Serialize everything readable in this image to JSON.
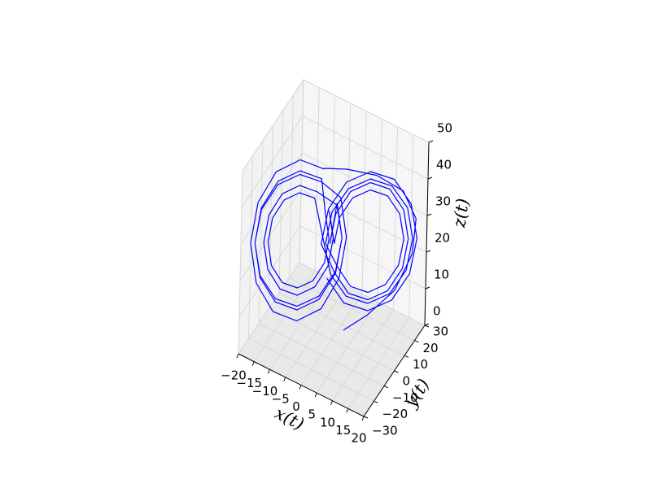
{
  "chart_data": {
    "type": "line3d",
    "xlabel": "x(t)",
    "ylabel": "y(t)",
    "zlabel": "z(t)",
    "xlim": [
      -20,
      20
    ],
    "ylim": [
      -30,
      30
    ],
    "zlim": [
      0,
      50
    ],
    "xticks": [
      {
        "value": -20,
        "label": "−20"
      },
      {
        "value": -15,
        "label": "−15"
      },
      {
        "value": -10,
        "label": "−10"
      },
      {
        "value": -5,
        "label": "−5"
      },
      0,
      5,
      10,
      15,
      20
    ],
    "yticks": [
      {
        "value": -30,
        "label": "−30"
      },
      {
        "value": -20,
        "label": "−20"
      },
      {
        "value": -10,
        "label": "−10"
      },
      0,
      10,
      20,
      30
    ],
    "zticks": [
      0,
      10,
      20,
      30,
      40,
      50
    ],
    "grid": true,
    "series": [
      {
        "color": "#0000ff",
        "x": [
          3,
          8,
          14,
          18,
          19,
          16,
          10,
          3,
          -2,
          -3,
          -8.5,
          -14,
          -18,
          -19.5,
          -18,
          -14,
          -8.5,
          -3,
          1,
          2.5,
          1,
          -3.5,
          -8.5,
          -13.5,
          -17.2,
          -18.5,
          -17.2,
          -13.5,
          -8.5,
          -3.5,
          0.2,
          1.5,
          0.2,
          -4.5,
          -8.5,
          -12.5,
          -15.4,
          -16.5,
          -15.4,
          -12.5,
          -8.5,
          -4.5,
          -1.6,
          -0.5,
          -1.6,
          0.5,
          1.6,
          4.5,
          8.5,
          12.5,
          15.4,
          16.5,
          15.4,
          12.5,
          8.5,
          4.5,
          1.6,
          -1.5,
          -0.2,
          3.5,
          8.5,
          13.5,
          17.2,
          18.5,
          17.2,
          13.5,
          8.5,
          3.5,
          -0.2,
          -5,
          -8.5,
          -12,
          -14.6,
          -15.5,
          -14.6,
          -12,
          -8.5,
          -5,
          -2.4,
          -1.5,
          -2.4,
          -3.5,
          -8.5,
          -13.5,
          -17.2,
          -18.5,
          -17.2,
          -13.5,
          -8.5,
          -3.5,
          0.2,
          1.5,
          0.2,
          -0.5,
          0.7,
          4,
          8.5,
          13,
          16.3,
          17.5,
          16.3,
          13,
          8.5,
          4,
          0.7,
          -2.5,
          -1,
          3,
          8.5,
          14,
          18,
          19.5,
          18,
          14,
          8.5,
          3,
          -1
        ],
        "y": [
          2,
          10,
          18,
          22,
          22,
          18,
          10,
          2,
          -5,
          -1.9,
          -8.5,
          -15.1,
          -19.9,
          -21.7,
          -19.9,
          -15.1,
          -8.5,
          -1.9,
          2.9,
          4.7,
          2.9,
          -2.5,
          -8.5,
          -14.5,
          -18.9,
          -20.5,
          -18.9,
          -14.5,
          -8.5,
          -2.5,
          1.9,
          3.5,
          1.9,
          -3.7,
          -8.5,
          -13.3,
          -16.8,
          -18.1,
          -16.8,
          -13.3,
          -8.5,
          -3.7,
          -0.2,
          1.1,
          -0.2,
          -1.1,
          0.2,
          3.7,
          8.5,
          13.3,
          16.8,
          18.1,
          16.8,
          13.3,
          8.5,
          3.7,
          0.2,
          -3.5,
          -1.9,
          2.5,
          8.5,
          14.5,
          18.9,
          20.5,
          18.9,
          14.5,
          8.5,
          2.5,
          -1.9,
          -4.3,
          -8.5,
          -12.7,
          -15.8,
          -16.9,
          -15.8,
          -12.7,
          -8.5,
          -4.3,
          -1.2,
          -0.1,
          -1.2,
          -2.5,
          -8.5,
          -14.5,
          -18.9,
          -20.5,
          -18.9,
          -14.5,
          -8.5,
          -2.5,
          1.9,
          3.5,
          1.9,
          -2.3,
          -0.9,
          3.1,
          8.5,
          13.9,
          17.9,
          19.3,
          17.9,
          13.9,
          8.5,
          3.1,
          -0.9,
          -4.7,
          -2.9,
          1.9,
          8.5,
          15.1,
          19.9,
          21.7,
          19.9,
          15.1,
          8.5,
          1.9,
          -2.9
        ],
        "z": [
          3,
          6,
          12,
          22,
          32,
          40,
          45,
          47,
          48,
          46.1,
          49,
          46.1,
          38,
          27,
          16,
          7.9,
          5,
          7.9,
          16,
          27,
          38,
          42.6,
          45,
          42.6,
          36,
          27,
          18,
          11.4,
          9,
          11.4,
          18,
          27,
          36,
          40,
          42,
          40,
          34.5,
          27,
          19.5,
          14,
          12,
          14,
          19.5,
          27,
          34.5,
          27,
          34,
          39.1,
          41,
          39.1,
          34,
          27,
          20,
          14.9,
          13,
          14.9,
          20,
          27,
          35.5,
          41.7,
          44,
          41.7,
          35.5,
          27,
          18.5,
          12.3,
          10,
          12.3,
          18.5,
          38.3,
          40,
          38.3,
          33.5,
          27,
          20.5,
          15.7,
          14,
          15.7,
          20.5,
          27,
          33.5,
          43.5,
          46,
          43.5,
          36.5,
          27,
          17.5,
          10.5,
          8,
          10.5,
          17.5,
          27,
          36.5,
          27,
          35,
          40.9,
          43,
          40.9,
          35,
          27,
          19,
          13.1,
          11,
          13.1,
          19,
          27,
          36.5,
          43.5,
          46,
          43.5,
          36.5,
          27,
          17.5,
          10.5,
          8,
          10.5,
          17.5
        ]
      }
    ]
  }
}
